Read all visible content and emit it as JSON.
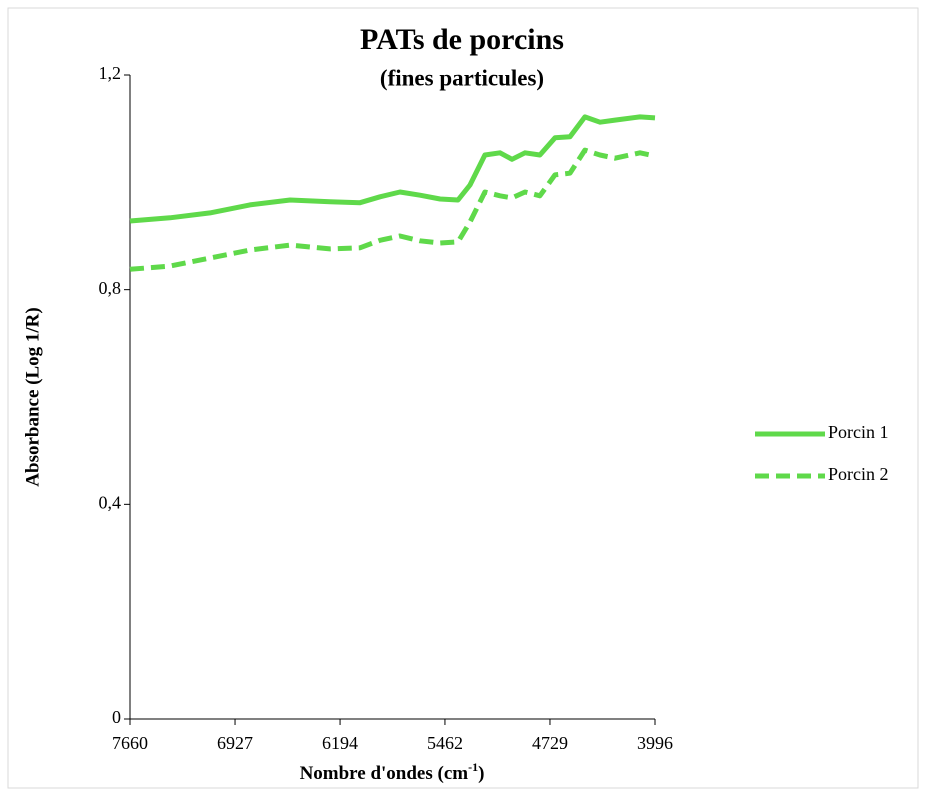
{
  "chart_data": {
    "type": "line",
    "title": "PATs de porcins",
    "subtitle": "(fines particules)",
    "x_label": {
      "text": "Nombre d'ondes (cm",
      "superscript": "-1",
      "suffix": ")"
    },
    "y_label": "Absorbance (Log 1/R)",
    "x": [
      7660,
      7381,
      7102,
      6823,
      6543,
      6264,
      6055,
      5915,
      5776,
      5636,
      5496,
      5371,
      5287,
      5183,
      5078,
      4994,
      4903,
      4799,
      4694,
      4589,
      4485,
      4380,
      4275,
      4101,
      3996
    ],
    "series": [
      {
        "name": "Porcin 1",
        "color": "#5fd94a",
        "line_style": "solid",
        "values": [
          0.928,
          0.934,
          0.943,
          0.958,
          0.967,
          0.964,
          0.962,
          0.973,
          0.982,
          0.976,
          0.969,
          0.967,
          0.995,
          1.051,
          1.055,
          1.043,
          1.055,
          1.051,
          1.083,
          1.085,
          1.122,
          1.112,
          1.116,
          1.122,
          1.12
        ]
      },
      {
        "name": "Porcin 2",
        "color": "#5fd94a",
        "line_style": "dashed",
        "values": [
          0.838,
          0.844,
          0.859,
          0.874,
          0.883,
          0.876,
          0.878,
          0.892,
          0.9,
          0.891,
          0.887,
          0.889,
          0.926,
          0.982,
          0.975,
          0.971,
          0.982,
          0.975,
          1.014,
          1.017,
          1.06,
          1.051,
          1.045,
          1.055,
          1.049
        ]
      }
    ],
    "xlim": [
      7660,
      3996
    ],
    "xticks": [
      7660,
      6927,
      6194,
      5462,
      4729,
      3996
    ],
    "ylim": [
      0,
      1.2
    ],
    "yticks": [
      0,
      {
        "value": 0.4,
        "label": "0,4"
      },
      {
        "value": 0.8,
        "label": "0,8"
      },
      {
        "value": 1.2,
        "label": "1,2"
      }
    ],
    "grid": false,
    "legend": "right"
  }
}
